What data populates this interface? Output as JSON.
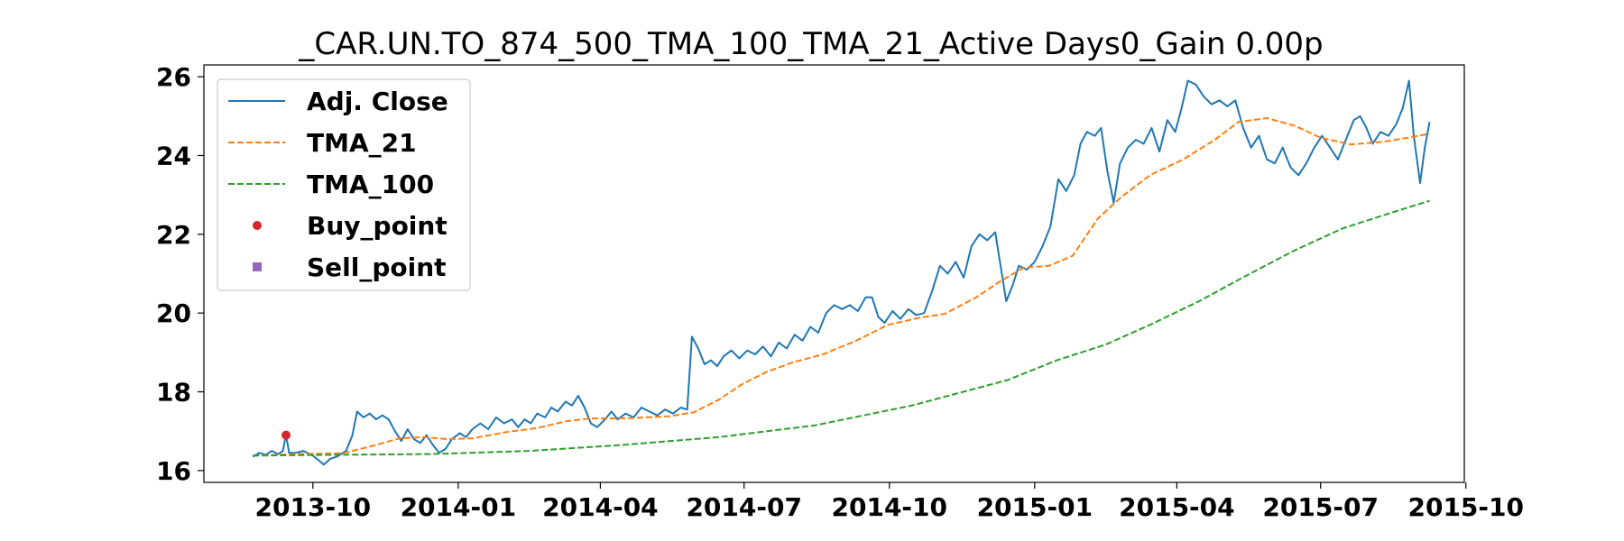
{
  "chart_data": {
    "type": "line",
    "title": "_CAR.UN.TO_874_500_TMA_100_TMA_21_Active Days0_Gain   0.00p",
    "xlabel": "",
    "ylabel": "",
    "x_range": [
      "2013-07-24",
      "2015-09-30"
    ],
    "ylim": [
      15.7,
      26.3
    ],
    "grid": false,
    "legend_position": "upper-left",
    "x_ticks": [
      "2013-10",
      "2014-01",
      "2014-04",
      "2014-07",
      "2014-10",
      "2015-01",
      "2015-04",
      "2015-07",
      "2015-10"
    ],
    "y_ticks": [
      16,
      18,
      20,
      22,
      24,
      26
    ],
    "series": [
      {
        "name": "Adj. Close",
        "color": "#1f77b4",
        "style": "solid",
        "points": [
          [
            "2013-08-24",
            16.35
          ],
          [
            "2013-08-28",
            16.45
          ],
          [
            "2013-09-01",
            16.4
          ],
          [
            "2013-09-05",
            16.5
          ],
          [
            "2013-09-09",
            16.42
          ],
          [
            "2013-09-12",
            16.5
          ],
          [
            "2013-09-14",
            16.9
          ],
          [
            "2013-09-16",
            16.45
          ],
          [
            "2013-09-20",
            16.45
          ],
          [
            "2013-09-25",
            16.5
          ],
          [
            "2013-10-01",
            16.38
          ],
          [
            "2013-10-05",
            16.25
          ],
          [
            "2013-10-08",
            16.15
          ],
          [
            "2013-10-12",
            16.3
          ],
          [
            "2013-10-16",
            16.35
          ],
          [
            "2013-10-22",
            16.5
          ],
          [
            "2013-10-26",
            16.9
          ],
          [
            "2013-10-29",
            17.5
          ],
          [
            "2013-11-02",
            17.35
          ],
          [
            "2013-11-06",
            17.45
          ],
          [
            "2013-11-10",
            17.3
          ],
          [
            "2013-11-14",
            17.4
          ],
          [
            "2013-11-18",
            17.3
          ],
          [
            "2013-11-22",
            17.0
          ],
          [
            "2013-11-26",
            16.75
          ],
          [
            "2013-11-30",
            17.05
          ],
          [
            "2013-12-04",
            16.8
          ],
          [
            "2013-12-08",
            16.7
          ],
          [
            "2013-12-12",
            16.9
          ],
          [
            "2013-12-16",
            16.65
          ],
          [
            "2013-12-20",
            16.45
          ],
          [
            "2013-12-24",
            16.55
          ],
          [
            "2013-12-28",
            16.8
          ],
          [
            "2014-01-02",
            16.95
          ],
          [
            "2014-01-06",
            16.85
          ],
          [
            "2014-01-10",
            17.05
          ],
          [
            "2014-01-15",
            17.2
          ],
          [
            "2014-01-20",
            17.05
          ],
          [
            "2014-01-25",
            17.35
          ],
          [
            "2014-01-30",
            17.2
          ],
          [
            "2014-02-04",
            17.3
          ],
          [
            "2014-02-08",
            17.1
          ],
          [
            "2014-02-12",
            17.3
          ],
          [
            "2014-02-16",
            17.2
          ],
          [
            "2014-02-20",
            17.45
          ],
          [
            "2014-02-25",
            17.35
          ],
          [
            "2014-03-01",
            17.6
          ],
          [
            "2014-03-05",
            17.5
          ],
          [
            "2014-03-10",
            17.75
          ],
          [
            "2014-03-14",
            17.65
          ],
          [
            "2014-03-18",
            17.9
          ],
          [
            "2014-03-22",
            17.6
          ],
          [
            "2014-03-26",
            17.2
          ],
          [
            "2014-03-30",
            17.1
          ],
          [
            "2014-04-04",
            17.3
          ],
          [
            "2014-04-08",
            17.5
          ],
          [
            "2014-04-12",
            17.3
          ],
          [
            "2014-04-17",
            17.45
          ],
          [
            "2014-04-22",
            17.35
          ],
          [
            "2014-04-27",
            17.6
          ],
          [
            "2014-05-02",
            17.5
          ],
          [
            "2014-05-07",
            17.4
          ],
          [
            "2014-05-12",
            17.55
          ],
          [
            "2014-05-17",
            17.45
          ],
          [
            "2014-05-22",
            17.6
          ],
          [
            "2014-05-26",
            17.55
          ],
          [
            "2014-05-29",
            19.4
          ],
          [
            "2014-06-02",
            19.1
          ],
          [
            "2014-06-06",
            18.7
          ],
          [
            "2014-06-10",
            18.8
          ],
          [
            "2014-06-14",
            18.65
          ],
          [
            "2014-06-18",
            18.9
          ],
          [
            "2014-06-23",
            19.05
          ],
          [
            "2014-06-28",
            18.85
          ],
          [
            "2014-07-03",
            19.05
          ],
          [
            "2014-07-08",
            18.95
          ],
          [
            "2014-07-13",
            19.15
          ],
          [
            "2014-07-18",
            18.9
          ],
          [
            "2014-07-23",
            19.25
          ],
          [
            "2014-07-28",
            19.1
          ],
          [
            "2014-08-02",
            19.45
          ],
          [
            "2014-08-07",
            19.3
          ],
          [
            "2014-08-12",
            19.65
          ],
          [
            "2014-08-17",
            19.5
          ],
          [
            "2014-08-22",
            20.0
          ],
          [
            "2014-08-27",
            20.2
          ],
          [
            "2014-09-01",
            20.1
          ],
          [
            "2014-09-06",
            20.2
          ],
          [
            "2014-09-11",
            20.05
          ],
          [
            "2014-09-16",
            20.4
          ],
          [
            "2014-09-20",
            20.4
          ],
          [
            "2014-09-24",
            19.9
          ],
          [
            "2014-09-28",
            19.75
          ],
          [
            "2014-10-03",
            20.05
          ],
          [
            "2014-10-08",
            19.85
          ],
          [
            "2014-10-13",
            20.1
          ],
          [
            "2014-10-18",
            19.95
          ],
          [
            "2014-10-23",
            20.0
          ],
          [
            "2014-10-28",
            20.55
          ],
          [
            "2014-11-02",
            21.2
          ],
          [
            "2014-11-07",
            21.0
          ],
          [
            "2014-11-12",
            21.3
          ],
          [
            "2014-11-17",
            20.9
          ],
          [
            "2014-11-22",
            21.7
          ],
          [
            "2014-11-27",
            22.0
          ],
          [
            "2014-12-02",
            21.85
          ],
          [
            "2014-12-07",
            22.05
          ],
          [
            "2014-12-10",
            21.3
          ],
          [
            "2014-12-14",
            20.3
          ],
          [
            "2014-12-18",
            20.7
          ],
          [
            "2014-12-22",
            21.2
          ],
          [
            "2014-12-27",
            21.1
          ],
          [
            "2015-01-01",
            21.3
          ],
          [
            "2015-01-06",
            21.7
          ],
          [
            "2015-01-11",
            22.2
          ],
          [
            "2015-01-16",
            23.4
          ],
          [
            "2015-01-21",
            23.1
          ],
          [
            "2015-01-26",
            23.5
          ],
          [
            "2015-01-30",
            24.3
          ],
          [
            "2015-02-03",
            24.6
          ],
          [
            "2015-02-08",
            24.5
          ],
          [
            "2015-02-12",
            24.7
          ],
          [
            "2015-02-16",
            23.6
          ],
          [
            "2015-02-20",
            22.8
          ],
          [
            "2015-02-24",
            23.8
          ],
          [
            "2015-03-01",
            24.2
          ],
          [
            "2015-03-06",
            24.4
          ],
          [
            "2015-03-11",
            24.3
          ],
          [
            "2015-03-16",
            24.7
          ],
          [
            "2015-03-21",
            24.1
          ],
          [
            "2015-03-26",
            24.9
          ],
          [
            "2015-03-31",
            24.6
          ],
          [
            "2015-04-04",
            25.2
          ],
          [
            "2015-04-08",
            25.9
          ],
          [
            "2015-04-13",
            25.8
          ],
          [
            "2015-04-18",
            25.5
          ],
          [
            "2015-04-23",
            25.3
          ],
          [
            "2015-04-28",
            25.4
          ],
          [
            "2015-05-03",
            25.25
          ],
          [
            "2015-05-08",
            25.4
          ],
          [
            "2015-05-13",
            24.7
          ],
          [
            "2015-05-18",
            24.2
          ],
          [
            "2015-05-23",
            24.5
          ],
          [
            "2015-05-28",
            23.9
          ],
          [
            "2015-06-02",
            23.8
          ],
          [
            "2015-06-07",
            24.2
          ],
          [
            "2015-06-12",
            23.7
          ],
          [
            "2015-06-17",
            23.5
          ],
          [
            "2015-06-22",
            23.8
          ],
          [
            "2015-06-27",
            24.2
          ],
          [
            "2015-07-02",
            24.5
          ],
          [
            "2015-07-07",
            24.2
          ],
          [
            "2015-07-12",
            23.9
          ],
          [
            "2015-07-17",
            24.4
          ],
          [
            "2015-07-22",
            24.9
          ],
          [
            "2015-07-26",
            25.0
          ],
          [
            "2015-07-30",
            24.7
          ],
          [
            "2015-08-03",
            24.3
          ],
          [
            "2015-08-08",
            24.6
          ],
          [
            "2015-08-13",
            24.5
          ],
          [
            "2015-08-18",
            24.8
          ],
          [
            "2015-08-22",
            25.2
          ],
          [
            "2015-08-26",
            25.9
          ],
          [
            "2015-08-29",
            24.5
          ],
          [
            "2015-09-02",
            23.3
          ],
          [
            "2015-09-05",
            24.2
          ],
          [
            "2015-09-08",
            24.85
          ]
        ]
      },
      {
        "name": "TMA_21",
        "color": "#ff7f0e",
        "style": "dashed",
        "points": [
          [
            "2013-08-24",
            16.38
          ],
          [
            "2013-09-20",
            16.42
          ],
          [
            "2013-10-20",
            16.44
          ],
          [
            "2013-11-10",
            16.65
          ],
          [
            "2013-11-25",
            16.82
          ],
          [
            "2013-12-10",
            16.85
          ],
          [
            "2013-12-25",
            16.8
          ],
          [
            "2014-01-10",
            16.82
          ],
          [
            "2014-02-01",
            16.98
          ],
          [
            "2014-02-20",
            17.08
          ],
          [
            "2014-03-10",
            17.25
          ],
          [
            "2014-03-25",
            17.32
          ],
          [
            "2014-04-20",
            17.33
          ],
          [
            "2014-05-15",
            17.38
          ],
          [
            "2014-05-30",
            17.48
          ],
          [
            "2014-06-15",
            17.8
          ],
          [
            "2014-06-30",
            18.2
          ],
          [
            "2014-07-15",
            18.5
          ],
          [
            "2014-08-01",
            18.75
          ],
          [
            "2014-08-20",
            18.95
          ],
          [
            "2014-09-10",
            19.3
          ],
          [
            "2014-09-30",
            19.7
          ],
          [
            "2014-10-20",
            19.88
          ],
          [
            "2014-11-05",
            19.98
          ],
          [
            "2014-11-25",
            20.4
          ],
          [
            "2014-12-10",
            20.8
          ],
          [
            "2014-12-25",
            21.15
          ],
          [
            "2015-01-10",
            21.2
          ],
          [
            "2015-01-25",
            21.45
          ],
          [
            "2015-02-10",
            22.4
          ],
          [
            "2015-02-25",
            22.95
          ],
          [
            "2015-03-15",
            23.5
          ],
          [
            "2015-04-05",
            23.9
          ],
          [
            "2015-04-25",
            24.4
          ],
          [
            "2015-05-10",
            24.85
          ],
          [
            "2015-05-28",
            24.95
          ],
          [
            "2015-06-15",
            24.75
          ],
          [
            "2015-07-01",
            24.45
          ],
          [
            "2015-07-20",
            24.28
          ],
          [
            "2015-08-10",
            24.35
          ],
          [
            "2015-08-25",
            24.45
          ],
          [
            "2015-09-08",
            24.55
          ]
        ]
      },
      {
        "name": "TMA_100",
        "color": "#2ca02c",
        "style": "dashed",
        "points": [
          [
            "2013-08-24",
            16.38
          ],
          [
            "2013-10-15",
            16.4
          ],
          [
            "2013-12-15",
            16.42
          ],
          [
            "2014-02-15",
            16.5
          ],
          [
            "2014-04-15",
            16.65
          ],
          [
            "2014-06-15",
            16.85
          ],
          [
            "2014-08-15",
            17.15
          ],
          [
            "2014-10-15",
            17.65
          ],
          [
            "2014-12-15",
            18.3
          ],
          [
            "2015-01-15",
            18.8
          ],
          [
            "2015-02-15",
            19.2
          ],
          [
            "2015-03-15",
            19.7
          ],
          [
            "2015-04-15",
            20.3
          ],
          [
            "2015-05-15",
            20.95
          ],
          [
            "2015-06-15",
            21.6
          ],
          [
            "2015-07-15",
            22.15
          ],
          [
            "2015-08-15",
            22.55
          ],
          [
            "2015-09-08",
            22.85
          ]
        ]
      }
    ],
    "markers": [
      {
        "name": "Buy_point",
        "color": "#d62728",
        "shape": "circle",
        "points": [
          [
            "2013-09-14",
            16.9
          ]
        ]
      },
      {
        "name": "Sell_point",
        "color": "#9467bd",
        "shape": "square",
        "points": []
      }
    ]
  }
}
